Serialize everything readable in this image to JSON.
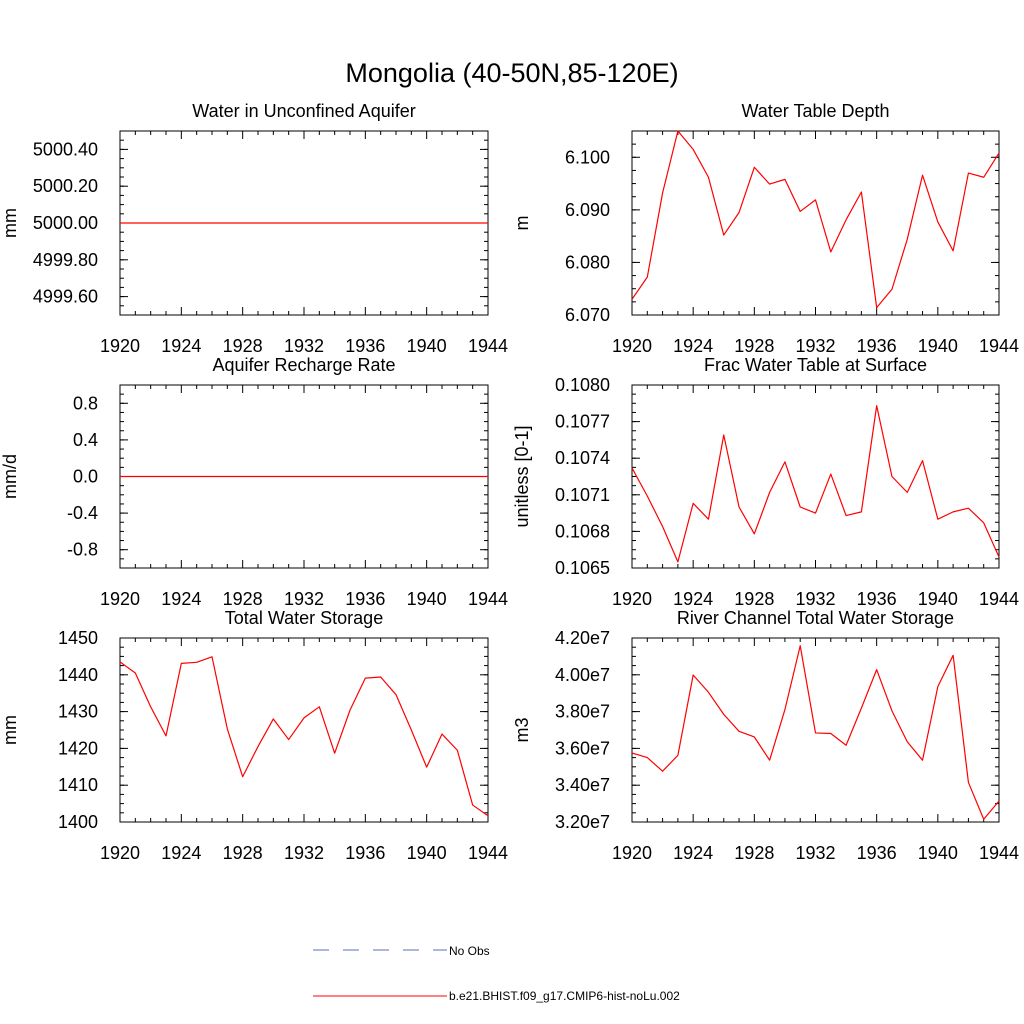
{
  "figure": {
    "title": "Mongolia (40-50N,85-120E)"
  },
  "legend": {
    "items": [
      {
        "label": "No Obs",
        "color": "#5a6fb8",
        "style": "dashed"
      },
      {
        "label": "b.e21.BHIST.f09_g17.CMIP6-hist-noLu.002",
        "color": "#ff0000",
        "style": "solid"
      }
    ]
  },
  "chart_data": [
    {
      "type": "line",
      "title": "Water in Unconfined Aquifer",
      "ylabel": "mm",
      "xlim": [
        1920,
        1944
      ],
      "ylim": [
        4999.5,
        5000.5
      ],
      "xticks": [
        "1920",
        "1924",
        "1928",
        "1932",
        "1936",
        "1940",
        "1944"
      ],
      "yticks": [
        {
          "v": 4999.6,
          "label": "4999.60"
        },
        {
          "v": 4999.8,
          "label": "4999.80"
        },
        {
          "v": 5000.0,
          "label": "5000.00"
        },
        {
          "v": 5000.2,
          "label": "5000.20"
        },
        {
          "v": 5000.4,
          "label": "5000.40"
        }
      ],
      "series": [
        {
          "name": "b.e21.BHIST.f09_g17.CMIP6-hist-noLu.002",
          "color": "#ff0000",
          "x": [
            1920,
            1921,
            1922,
            1923,
            1924,
            1925,
            1926,
            1927,
            1928,
            1929,
            1930,
            1931,
            1932,
            1933,
            1934,
            1935,
            1936,
            1937,
            1938,
            1939,
            1940,
            1941,
            1942,
            1943,
            1944
          ],
          "y": [
            5000,
            5000,
            5000,
            5000,
            5000,
            5000,
            5000,
            5000,
            5000,
            5000,
            5000,
            5000,
            5000,
            5000,
            5000,
            5000,
            5000,
            5000,
            5000,
            5000,
            5000,
            5000,
            5000,
            5000,
            5000
          ]
        }
      ]
    },
    {
      "type": "line",
      "title": "Water Table Depth",
      "ylabel": "m",
      "xlim": [
        1920,
        1944
      ],
      "ylim": [
        6.07,
        6.105
      ],
      "xticks": [
        "1920",
        "1924",
        "1928",
        "1932",
        "1936",
        "1940",
        "1944"
      ],
      "yticks": [
        {
          "v": 6.07,
          "label": "6.070"
        },
        {
          "v": 6.08,
          "label": "6.080"
        },
        {
          "v": 6.09,
          "label": "6.090"
        },
        {
          "v": 6.1,
          "label": "6.100"
        }
      ],
      "series": [
        {
          "name": "b.e21.BHIST.f09_g17.CMIP6-hist-noLu.002",
          "color": "#ff0000",
          "x": [
            1920,
            1921,
            1922,
            1923,
            1924,
            1925,
            1926,
            1927,
            1928,
            1929,
            1930,
            1931,
            1932,
            1933,
            1934,
            1935,
            1936,
            1937,
            1938,
            1939,
            1940,
            1941,
            1942,
            1943,
            1944
          ],
          "y": [
            6.073,
            6.0772,
            6.0932,
            6.105,
            6.1015,
            6.0962,
            6.0852,
            6.0895,
            6.0981,
            6.0949,
            6.0958,
            6.0897,
            6.0919,
            6.082,
            6.0881,
            6.0934,
            6.0714,
            6.0749,
            6.0844,
            6.0966,
            6.0877,
            6.0822,
            6.097,
            6.0962,
            6.1008
          ]
        }
      ]
    },
    {
      "type": "line",
      "title": "Aquifer Recharge Rate",
      "ylabel": "mm/d",
      "xlim": [
        1920,
        1944
      ],
      "ylim": [
        -1.0,
        1.0
      ],
      "xticks": [
        "1920",
        "1924",
        "1928",
        "1932",
        "1936",
        "1940",
        "1944"
      ],
      "yticks": [
        {
          "v": -0.8,
          "label": "-0.8"
        },
        {
          "v": -0.4,
          "label": "-0.4"
        },
        {
          "v": 0.0,
          "label": "0.0"
        },
        {
          "v": 0.4,
          "label": "0.4"
        },
        {
          "v": 0.8,
          "label": "0.8"
        }
      ],
      "series": [
        {
          "name": "b.e21.BHIST.f09_g17.CMIP6-hist-noLu.002",
          "color": "#ff0000",
          "x": [
            1920,
            1921,
            1922,
            1923,
            1924,
            1925,
            1926,
            1927,
            1928,
            1929,
            1930,
            1931,
            1932,
            1933,
            1934,
            1935,
            1936,
            1937,
            1938,
            1939,
            1940,
            1941,
            1942,
            1943,
            1944
          ],
          "y": [
            0,
            0,
            0,
            0,
            0,
            0,
            0,
            0,
            0,
            0,
            0,
            0,
            0,
            0,
            0,
            0,
            0,
            0,
            0,
            0,
            0,
            0,
            0,
            0,
            0
          ]
        }
      ]
    },
    {
      "type": "line",
      "title": "Frac Water Table at Surface",
      "ylabel": "unitless [0-1]",
      "xlim": [
        1920,
        1944
      ],
      "ylim": [
        0.1065,
        0.108
      ],
      "xticks": [
        "1920",
        "1924",
        "1928",
        "1932",
        "1936",
        "1940",
        "1944"
      ],
      "yticks": [
        {
          "v": 0.1065,
          "label": "0.1065"
        },
        {
          "v": 0.1068,
          "label": "0.1068"
        },
        {
          "v": 0.1071,
          "label": "0.1071"
        },
        {
          "v": 0.1074,
          "label": "0.1074"
        },
        {
          "v": 0.1077,
          "label": "0.1077"
        },
        {
          "v": 0.108,
          "label": "0.1080"
        }
      ],
      "series": [
        {
          "name": "b.e21.BHIST.f09_g17.CMIP6-hist-noLu.002",
          "color": "#ff0000",
          "x": [
            1920,
            1921,
            1922,
            1923,
            1924,
            1925,
            1926,
            1927,
            1928,
            1929,
            1930,
            1931,
            1932,
            1933,
            1934,
            1935,
            1936,
            1937,
            1938,
            1939,
            1940,
            1941,
            1942,
            1943,
            1944
          ],
          "y": [
            0.10732,
            0.10709,
            0.10684,
            0.10655,
            0.10703,
            0.1069,
            0.10759,
            0.107,
            0.10678,
            0.10712,
            0.10737,
            0.107,
            0.10695,
            0.10727,
            0.10693,
            0.10696,
            0.10783,
            0.10725,
            0.10712,
            0.10738,
            0.1069,
            0.10696,
            0.10699,
            0.10687,
            0.10659
          ]
        }
      ]
    },
    {
      "type": "line",
      "title": "Total Water Storage",
      "ylabel": "mm",
      "xlim": [
        1920,
        1944
      ],
      "ylim": [
        1400,
        1450
      ],
      "xticks": [
        "1920",
        "1924",
        "1928",
        "1932",
        "1936",
        "1940",
        "1944"
      ],
      "yticks": [
        {
          "v": 1400,
          "label": "1400"
        },
        {
          "v": 1410,
          "label": "1410"
        },
        {
          "v": 1420,
          "label": "1420"
        },
        {
          "v": 1430,
          "label": "1430"
        },
        {
          "v": 1440,
          "label": "1440"
        },
        {
          "v": 1450,
          "label": "1450"
        }
      ],
      "series": [
        {
          "name": "b.e21.BHIST.f09_g17.CMIP6-hist-noLu.002",
          "color": "#ff0000",
          "x": [
            1920,
            1921,
            1922,
            1923,
            1924,
            1925,
            1926,
            1927,
            1928,
            1929,
            1930,
            1931,
            1932,
            1933,
            1934,
            1935,
            1936,
            1937,
            1938,
            1939,
            1940,
            1941,
            1942,
            1943,
            1944
          ],
          "y": [
            1443.5,
            1440.5,
            1431.3,
            1423.4,
            1443.1,
            1443.4,
            1444.9,
            1425.3,
            1412.3,
            1420.5,
            1428.0,
            1422.4,
            1428.3,
            1431.3,
            1418.7,
            1430.4,
            1439.1,
            1439.4,
            1434.6,
            1425.0,
            1414.9,
            1423.9,
            1419.5,
            1404.6,
            1401.7
          ]
        }
      ]
    },
    {
      "type": "line",
      "title": "River Channel Total Water Storage",
      "ylabel": "m3",
      "xlim": [
        1920,
        1944
      ],
      "ylim": [
        32000000,
        42000000
      ],
      "xticks": [
        "1920",
        "1924",
        "1928",
        "1932",
        "1936",
        "1940",
        "1944"
      ],
      "yticks": [
        {
          "v": 32000000,
          "label": "3.20e7"
        },
        {
          "v": 34000000,
          "label": "3.40e7"
        },
        {
          "v": 36000000,
          "label": "3.60e7"
        },
        {
          "v": 38000000,
          "label": "3.80e7"
        },
        {
          "v": 40000000,
          "label": "4.00e7"
        },
        {
          "v": 42000000,
          "label": "4.20e7"
        }
      ],
      "series": [
        {
          "name": "b.e21.BHIST.f09_g17.CMIP6-hist-noLu.002",
          "color": "#ff0000",
          "x": [
            1920,
            1921,
            1922,
            1923,
            1924,
            1925,
            1926,
            1927,
            1928,
            1929,
            1930,
            1931,
            1932,
            1933,
            1934,
            1935,
            1936,
            1937,
            1938,
            1939,
            1940,
            1941,
            1942,
            1943,
            1944
          ],
          "y": [
            35750000,
            35500000,
            34760000,
            35620000,
            39990000,
            39050000,
            37850000,
            36930000,
            36620000,
            35360000,
            38110000,
            41580000,
            36840000,
            36810000,
            36170000,
            38190000,
            40280000,
            38040000,
            36360000,
            35360000,
            39360000,
            41060000,
            34150000,
            32150000,
            33140000
          ]
        }
      ]
    }
  ]
}
